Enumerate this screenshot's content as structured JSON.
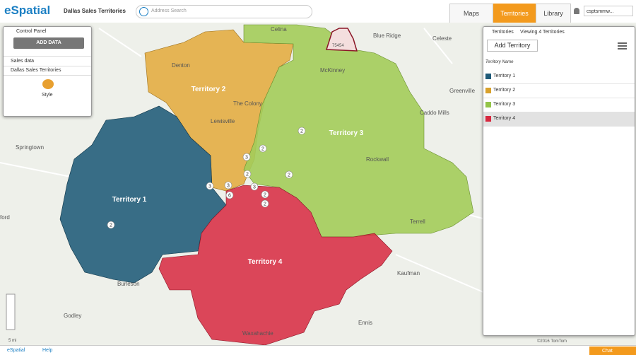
{
  "header": {
    "logo": "eSpatial",
    "map_title": "Dallas Sales Territories",
    "search_placeholder": "Address Search",
    "tabs": [
      "Maps",
      "Territories",
      "Library"
    ],
    "user": "csptsmmw..."
  },
  "control_panel": {
    "title": "Control Panel",
    "add_data": "ADD DATA",
    "layers": [
      "Sales data",
      "Dallas Sales Territories"
    ],
    "style": "Style"
  },
  "map": {
    "territory_labels": [
      "Territory 1",
      "Territory 2",
      "Territory 3",
      "Territory 4"
    ],
    "places": [
      "Springtown",
      "Denton",
      "Lewisville",
      "The Colony",
      "McKinney",
      "Celina",
      "Blue Ridge",
      "Celeste",
      "Greenville",
      "Caddo Mills",
      "Rockwall",
      "Kaufman",
      "Waxahachie",
      "Burleson",
      "Godley",
      "Ennis",
      "Terrell",
      "ford"
    ],
    "clusters": [
      2,
      3,
      2,
      3,
      3,
      6,
      3,
      2,
      2,
      2,
      2,
      2
    ],
    "zip": "75454",
    "attribution": "©2016 TomTom",
    "scale": "5 mi"
  },
  "territories_panel": {
    "title": "Territories",
    "viewing": "Viewing 4 Territories",
    "add": "Add Territory",
    "column": "Territory Name",
    "rows": [
      {
        "name": "Territory 1",
        "color": "#1f5a78"
      },
      {
        "name": "Territory 2",
        "color": "#d9a12c"
      },
      {
        "name": "Territory 3",
        "color": "#93c448"
      },
      {
        "name": "Territory 4",
        "color": "#d7283f"
      }
    ]
  },
  "footer": {
    "logo": "eSpatial",
    "help": "Help",
    "chat": "Chat"
  }
}
